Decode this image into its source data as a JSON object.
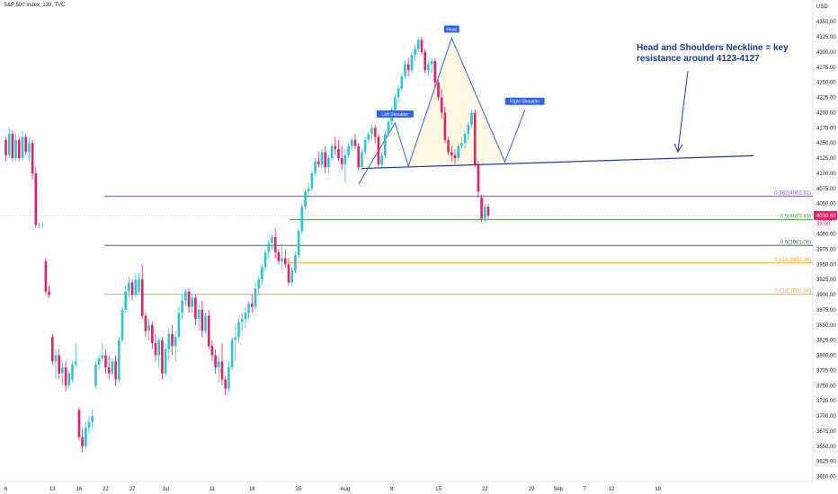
{
  "header": {
    "title": "S&P 500 Index, 130, TVC"
  },
  "chart_data": {
    "type": "candlestick",
    "price_axis": {
      "currency": "USD",
      "ticks": [
        "4350.00",
        "4325.00",
        "4300.00",
        "4275.00",
        "4250.00",
        "4225.00",
        "4200.00",
        "4175.00",
        "4150.00",
        "4125.00",
        "4100.00",
        "4075.00",
        "4050.00",
        "4025.00",
        "4000.00",
        "3975.00",
        "3950.00",
        "3925.00",
        "3900.00",
        "3875.00",
        "3850.00",
        "3825.00",
        "3800.00",
        "3775.00",
        "3750.00",
        "3725.00",
        "3700.00",
        "3675.00",
        "3650.00",
        "3625.00",
        "3600.00"
      ],
      "range": [
        3592,
        4368
      ]
    },
    "time_axis": {
      "ticks": [
        {
          "label": "6",
          "i": 0
        },
        {
          "label": "13",
          "i": 14
        },
        {
          "label": "16",
          "i": 22
        },
        {
          "label": "22",
          "i": 30
        },
        {
          "label": "27",
          "i": 38
        },
        {
          "label": "Jul",
          "i": 48
        },
        {
          "label": "11",
          "i": 62
        },
        {
          "label": "18",
          "i": 74
        },
        {
          "label": "25",
          "i": 88
        },
        {
          "label": "Aug",
          "i": 102
        },
        {
          "label": "8",
          "i": 116
        },
        {
          "label": "15",
          "i": 130
        },
        {
          "label": "22",
          "i": 144
        },
        {
          "label": "29",
          "i": 158
        },
        {
          "label": "Sep",
          "i": 166
        },
        {
          "label": "7",
          "i": 174
        },
        {
          "label": "12",
          "i": 182
        },
        {
          "label": "19",
          "i": 196
        }
      ]
    },
    "current_price": {
      "value": 4030.6,
      "label": "4030.60",
      "time_label": "33:00"
    },
    "fib_levels": [
      {
        "label": "0.382(4062.31)",
        "value": 4062.31,
        "color": "#7e57c2"
      },
      {
        "label": "0.5(4023.43)",
        "value": 4023.43,
        "color": "#43a047"
      },
      {
        "label": "0.5(3981.08)",
        "value": 3981.08,
        "color": "#2e7d32"
      },
      {
        "label": "0.618(3952.16)",
        "value": 3952.16,
        "color": "#f9a825"
      },
      {
        "label": "0.618(3900.64)",
        "value": 3900.64,
        "color": "#f9a825"
      }
    ],
    "neckline": {
      "from": {
        "i": 107,
        "v": 4108
      },
      "to": {
        "i": 186,
        "v": 4129
      }
    },
    "pattern": {
      "points": [
        {
          "i": 106,
          "v": 4082
        },
        {
          "i": 117,
          "v": 4183
        },
        {
          "i": 121,
          "v": 4112
        },
        {
          "i": 134,
          "v": 4323
        },
        {
          "i": 150,
          "v": 4119
        },
        {
          "i": 156,
          "v": 4204
        }
      ],
      "labels": [
        {
          "text": "Left Shoulder",
          "i": 117,
          "v": 4183
        },
        {
          "text": "Head",
          "i": 134,
          "v": 4323
        },
        {
          "text": "Right Shoulder",
          "i": 156,
          "v": 4204
        }
      ]
    },
    "annotation": {
      "lines": [
        "Head and Shoulders Neckline = key",
        "resistance around 4123-4127"
      ]
    },
    "colors": {
      "up": "#26c6da",
      "down": "#e91e63",
      "neckline": "#1a3aa8",
      "pattern": "#2962ff"
    },
    "candles": [
      [
        4155,
        4160,
        4120,
        4130
      ],
      [
        4130,
        4175,
        4125,
        4165
      ],
      [
        4165,
        4170,
        4120,
        4125
      ],
      [
        4125,
        4165,
        4120,
        4155
      ],
      [
        4155,
        4160,
        4120,
        4125
      ],
      [
        4125,
        4170,
        4120,
        4160
      ],
      [
        4160,
        4165,
        4130,
        4135
      ],
      [
        4135,
        4160,
        4120,
        4150
      ],
      [
        4150,
        4155,
        4090,
        4100
      ],
      [
        4100,
        4110,
        4010,
        4015
      ],
      [
        4015,
        4020,
        4010,
        4015
      ],
      [
        4015,
        4020,
        4010,
        4015
      ],
      [
        3955,
        3960,
        3900,
        3905
      ],
      [
        3905,
        3915,
        3895,
        3900
      ],
      [
        3830,
        3835,
        3785,
        3790
      ],
      [
        3790,
        3810,
        3760,
        3800
      ],
      [
        3800,
        3810,
        3760,
        3770
      ],
      [
        3770,
        3790,
        3750,
        3780
      ],
      [
        3780,
        3790,
        3740,
        3750
      ],
      [
        3750,
        3775,
        3745,
        3770
      ],
      [
        3760,
        3790,
        3755,
        3785
      ],
      [
        3785,
        3820,
        3780,
        3790
      ],
      [
        3710,
        3715,
        3660,
        3665
      ],
      [
        3665,
        3680,
        3640,
        3650
      ],
      [
        3650,
        3690,
        3645,
        3680
      ],
      [
        3680,
        3700,
        3670,
        3690
      ],
      [
        3690,
        3710,
        3680,
        3700
      ],
      [
        3750,
        3790,
        3745,
        3785
      ],
      [
        3785,
        3800,
        3775,
        3795
      ],
      [
        3795,
        3820,
        3790,
        3800
      ],
      [
        3800,
        3810,
        3770,
        3780
      ],
      [
        3780,
        3800,
        3760,
        3770
      ],
      [
        3770,
        3795,
        3765,
        3790
      ],
      [
        3790,
        3800,
        3750,
        3760
      ],
      [
        3760,
        3830,
        3755,
        3825
      ],
      [
        3825,
        3880,
        3820,
        3875
      ],
      [
        3875,
        3915,
        3870,
        3905
      ],
      [
        3905,
        3930,
        3895,
        3920
      ],
      [
        3920,
        3925,
        3890,
        3900
      ],
      [
        3900,
        3935,
        3895,
        3925
      ],
      [
        3905,
        3935,
        3900,
        3925
      ],
      [
        3925,
        3950,
        3860,
        3865
      ],
      [
        3865,
        3870,
        3830,
        3840
      ],
      [
        3840,
        3860,
        3825,
        3850
      ],
      [
        3850,
        3855,
        3810,
        3820
      ],
      [
        3820,
        3835,
        3790,
        3800
      ],
      [
        3800,
        3830,
        3780,
        3825
      ],
      [
        3825,
        3830,
        3760,
        3770
      ],
      [
        3770,
        3820,
        3765,
        3810
      ],
      [
        3810,
        3845,
        3790,
        3835
      ],
      [
        3835,
        3850,
        3800,
        3815
      ],
      [
        3815,
        3840,
        3790,
        3830
      ],
      [
        3830,
        3880,
        3825,
        3870
      ],
      [
        3870,
        3900,
        3860,
        3890
      ],
      [
        3890,
        3910,
        3880,
        3905
      ],
      [
        3905,
        3910,
        3870,
        3880
      ],
      [
        3880,
        3900,
        3870,
        3895
      ],
      [
        3895,
        3900,
        3850,
        3860
      ],
      [
        3860,
        3885,
        3840,
        3875
      ],
      [
        3875,
        3890,
        3830,
        3840
      ],
      [
        3840,
        3870,
        3835,
        3865
      ],
      [
        3865,
        3875,
        3810,
        3815
      ],
      [
        3815,
        3825,
        3790,
        3800
      ],
      [
        3800,
        3810,
        3770,
        3780
      ],
      [
        3780,
        3800,
        3755,
        3790
      ],
      [
        3790,
        3820,
        3750,
        3760
      ],
      [
        3760,
        3765,
        3735,
        3745
      ],
      [
        3745,
        3790,
        3740,
        3780
      ],
      [
        3780,
        3830,
        3775,
        3825
      ],
      [
        3825,
        3850,
        3790,
        3830
      ],
      [
        3830,
        3860,
        3820,
        3855
      ],
      [
        3855,
        3870,
        3840,
        3860
      ],
      [
        3860,
        3880,
        3845,
        3870
      ],
      [
        3870,
        3890,
        3860,
        3885
      ],
      [
        3885,
        3900,
        3870,
        3880
      ],
      [
        3880,
        3920,
        3875,
        3910
      ],
      [
        3910,
        3930,
        3900,
        3925
      ],
      [
        3925,
        3950,
        3915,
        3945
      ],
      [
        3945,
        3975,
        3940,
        3970
      ],
      [
        3970,
        3990,
        3960,
        3985
      ],
      [
        3985,
        4000,
        3975,
        3995
      ],
      [
        3995,
        4010,
        3960,
        3970
      ],
      [
        3970,
        3975,
        3950,
        3955
      ],
      [
        3955,
        3985,
        3940,
        3960
      ],
      [
        3960,
        3975,
        3945,
        3950
      ],
      [
        3950,
        3960,
        3915,
        3920
      ],
      [
        3920,
        3945,
        3915,
        3940
      ],
      [
        3940,
        3970,
        3935,
        3965
      ],
      [
        3965,
        4010,
        3960,
        4005
      ],
      [
        4005,
        4050,
        4000,
        4045
      ],
      [
        4045,
        4075,
        4040,
        4070
      ],
      [
        4070,
        4085,
        4060,
        4075
      ],
      [
        4075,
        4105,
        4070,
        4100
      ],
      [
        4100,
        4125,
        4095,
        4120
      ],
      [
        4120,
        4135,
        4110,
        4115
      ],
      [
        4115,
        4140,
        4110,
        4135
      ],
      [
        4135,
        4145,
        4100,
        4110
      ],
      [
        4110,
        4130,
        4100,
        4125
      ],
      [
        4125,
        4150,
        4120,
        4145
      ],
      [
        4145,
        4160,
        4130,
        4140
      ],
      [
        4140,
        4155,
        4120,
        4125
      ],
      [
        4125,
        4145,
        4105,
        4115
      ],
      [
        4115,
        4140,
        4085,
        4130
      ],
      [
        4130,
        4150,
        4125,
        4145
      ],
      [
        4145,
        4160,
        4140,
        4155
      ],
      [
        4155,
        4165,
        4140,
        4145
      ],
      [
        4145,
        4150,
        4105,
        4110
      ],
      [
        4110,
        4140,
        4105,
        4135
      ],
      [
        4135,
        4160,
        4130,
        4155
      ],
      [
        4155,
        4170,
        4150,
        4165
      ],
      [
        4165,
        4180,
        4155,
        4175
      ],
      [
        4175,
        4180,
        4150,
        4160
      ],
      [
        4160,
        4165,
        4110,
        4115
      ],
      [
        4115,
        4135,
        4110,
        4130
      ],
      [
        4130,
        4170,
        4125,
        4165
      ],
      [
        4165,
        4190,
        4160,
        4185
      ],
      [
        4185,
        4210,
        4180,
        4205
      ],
      [
        4205,
        4230,
        4200,
        4225
      ],
      [
        4225,
        4245,
        4215,
        4240
      ],
      [
        4240,
        4265,
        4235,
        4260
      ],
      [
        4260,
        4285,
        4255,
        4280
      ],
      [
        4280,
        4290,
        4260,
        4270
      ],
      [
        4270,
        4300,
        4265,
        4295
      ],
      [
        4295,
        4310,
        4285,
        4305
      ],
      [
        4305,
        4325,
        4300,
        4320
      ],
      [
        4320,
        4325,
        4295,
        4300
      ],
      [
        4300,
        4305,
        4265,
        4270
      ],
      [
        4270,
        4285,
        4260,
        4280
      ],
      [
        4280,
        4290,
        4265,
        4285
      ],
      [
        4285,
        4290,
        4240,
        4250
      ],
      [
        4250,
        4255,
        4220,
        4225
      ],
      [
        4225,
        4240,
        4190,
        4200
      ],
      [
        4200,
        4210,
        4150,
        4155
      ],
      [
        4155,
        4160,
        4130,
        4135
      ],
      [
        4135,
        4145,
        4120,
        4130
      ],
      [
        4130,
        4140,
        4115,
        4125
      ],
      [
        4125,
        4150,
        4120,
        4145
      ],
      [
        4145,
        4160,
        4140,
        4150
      ],
      [
        4150,
        4170,
        4140,
        4165
      ],
      [
        4165,
        4185,
        4155,
        4180
      ],
      [
        4180,
        4205,
        4175,
        4200
      ],
      [
        4200,
        4205,
        4110,
        4115
      ],
      [
        4115,
        4120,
        4060,
        4070
      ],
      [
        4060,
        4065,
        4020,
        4025
      ],
      [
        4025,
        4050,
        4020,
        4045
      ],
      [
        4045,
        4050,
        4025,
        4030
      ]
    ]
  }
}
